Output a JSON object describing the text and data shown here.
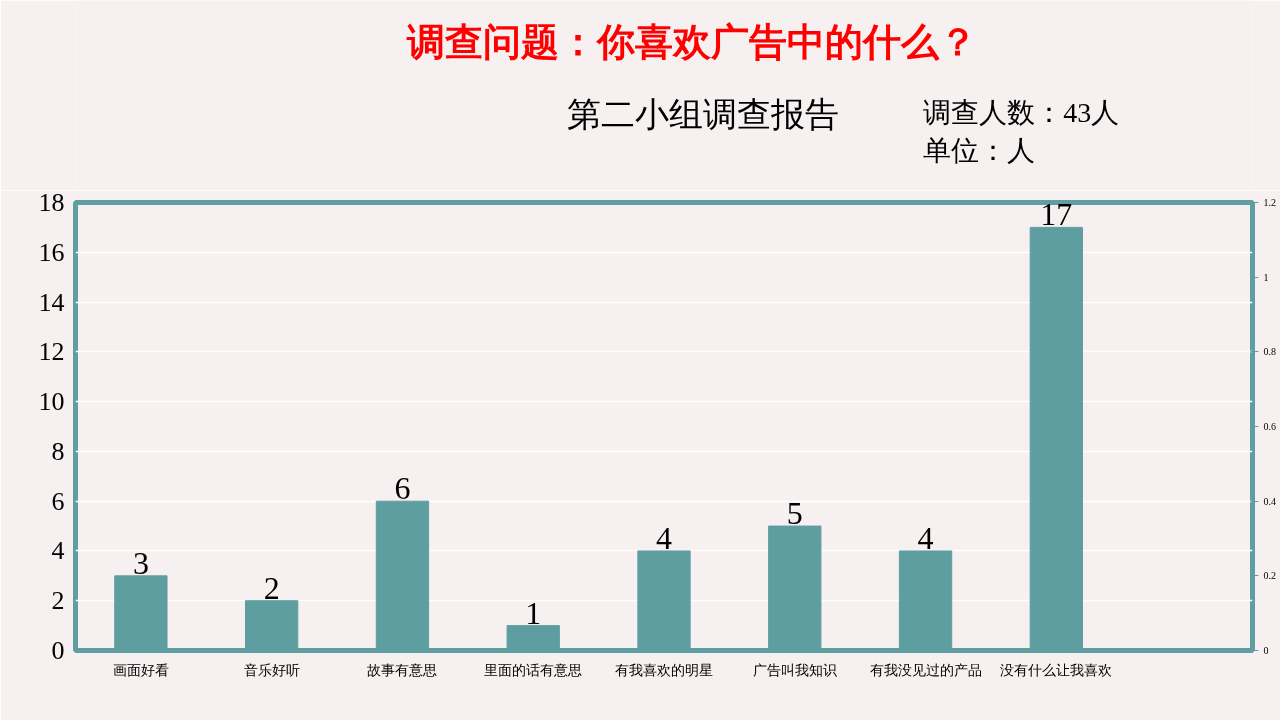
{
  "chart_data": {
    "type": "bar",
    "title": "调查问题：你喜欢广告中的什么？",
    "annotations": [
      "第二小组调查报告",
      "调查人数：43人",
      "单位：人"
    ],
    "categories": [
      "画面好看",
      "音乐好听",
      "故事有意思",
      "里面的话有意思",
      "有我喜欢的明星",
      "广告叫我知识",
      "有我没见过的产品",
      "没有什么让我喜欢",
      null
    ],
    "values": [
      3,
      2,
      6,
      1,
      4,
      5,
      4,
      17,
      null
    ],
    "color": "#5f9ea0",
    "ylim": [
      0,
      18
    ],
    "yticks": [
      0,
      2,
      4,
      6,
      8,
      10,
      12,
      14,
      16,
      18
    ],
    "y2lim": [
      0,
      1.2
    ],
    "y2ticks": [
      0,
      0.2,
      0.4,
      0.6,
      0.8,
      1,
      1.2
    ],
    "grid": "y",
    "data_labels": true
  }
}
